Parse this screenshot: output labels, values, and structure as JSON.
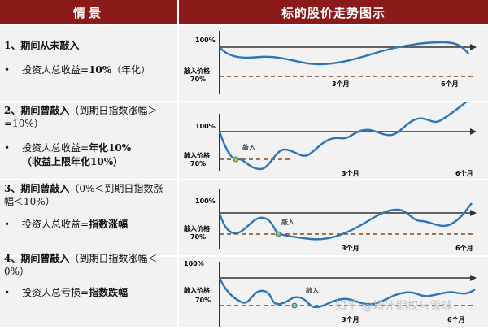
{
  "header": {
    "left_label": "情景",
    "right_label": "标的股价走势图示"
  },
  "cases": [
    {
      "title": "1、期间从未敲入",
      "title_note": "",
      "title_note_2": "",
      "bullet_plain": "投资人总收益=",
      "bullet_bold": "10%",
      "bullet_rest": "（年化）",
      "bullet_line2": "",
      "chart": {
        "level_100": "100%",
        "knock_in_label": "敲入价格",
        "level_70": "70%",
        "month_3": "3个月",
        "month_6": "6个月",
        "knock_in_text": ""
      }
    },
    {
      "title": "2、期间曾敲入",
      "title_note": "（到期日指数涨幅＞",
      "title_note_2": "=10%）",
      "bullet_plain": "投资人总收益=",
      "bullet_bold": "年化10%",
      "bullet_rest": "",
      "bullet_line2": "（收益上限年化10%）",
      "chart": {
        "level_100": "100%",
        "knock_in_label": "敲入价格",
        "level_70": "70%",
        "month_3": "3个月",
        "month_6": "6个月",
        "knock_in_text": "敲入"
      }
    },
    {
      "title": "3、期间曾敲入",
      "title_note": "（0%＜到期日指数涨",
      "title_note_2": "幅＜10%）",
      "bullet_plain": "投资人总收益=",
      "bullet_bold": "指数涨幅",
      "bullet_rest": "",
      "bullet_line2": "",
      "chart": {
        "level_100": "100%",
        "knock_in_label": "敲入价格",
        "level_70": "70%",
        "month_3": "3个月",
        "month_6": "6个月",
        "knock_in_text": "敲入"
      }
    },
    {
      "title": "4、期间曾敲入",
      "title_note": "（到期日指数涨幅＜",
      "title_note_2": "0%）",
      "bullet_plain": "投资人总亏损=",
      "bullet_bold": "指数跌幅",
      "bullet_rest": "",
      "bullet_line2": "",
      "chart": {
        "level_100": "100%",
        "knock_in_label": "敲入价格",
        "level_70": "70%",
        "month_3": "3个月",
        "month_6": "6个月",
        "knock_in_text": "敲入"
      }
    }
  ],
  "watermark": "知乎 @场外期权与雪球",
  "colors": {
    "header_bg": "#8b1a1a",
    "cell_bg": "#f2f2f2",
    "price_line": "#2e75b6",
    "axis": "#333333",
    "knock_in_line": "#8b4513",
    "knock_in_marker": "#9acd32"
  },
  "icons": {
    "bullet": "bullet-dot-icon",
    "arrow": "axis-arrow-icon"
  }
}
